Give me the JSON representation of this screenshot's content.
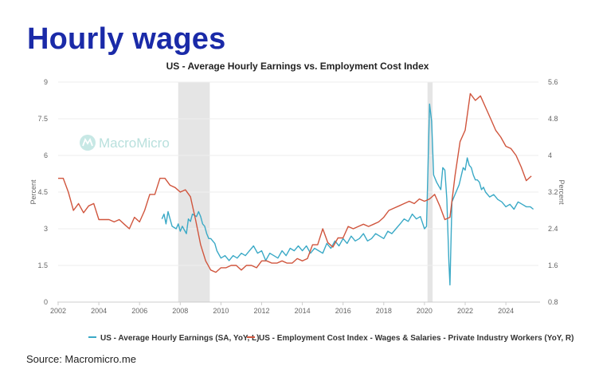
{
  "slide": {
    "title": "Hourly wages",
    "source": "Source: Macromicro.me"
  },
  "watermark": {
    "text": "MacroMicro",
    "icon": "macromicro-logo-icon"
  },
  "colors": {
    "title": "#1a2aa8",
    "series_ahe": "#3aa9c6",
    "series_eci": "#d0553d",
    "recession_shade": "#e5e5e5",
    "gridline": "#eeeeee"
  },
  "chart_data": {
    "type": "line",
    "title": "US - Average Hourly Earnings vs. Employment Cost Index",
    "xlim": [
      2002,
      2025.6
    ],
    "x_ticks": [
      "2002",
      "2004",
      "2006",
      "2008",
      "2010",
      "2012",
      "2014",
      "2016",
      "2018",
      "2020",
      "2022",
      "2024"
    ],
    "y_left": {
      "label": "Percent",
      "lim": [
        0,
        9
      ],
      "ticks": [
        "0",
        "1.5",
        "3",
        "4.5",
        "6",
        "7.5",
        "9"
      ]
    },
    "y_right": {
      "label": "Percent",
      "lim": [
        0.8,
        5.6
      ],
      "ticks": [
        "0.8",
        "1.6",
        "2.4",
        "3.2",
        "4",
        "4.8",
        "5.6"
      ]
    },
    "grid": "horizontal",
    "legend_position": "bottom",
    "recessions": [
      [
        2007.9,
        2009.45
      ],
      [
        2020.15,
        2020.4
      ]
    ],
    "series": [
      {
        "name": "US - Average Hourly Earnings (SA, YoY, L)",
        "axis": "left",
        "color": "#3aa9c6",
        "x": [
          2007.1,
          2007.2,
          2007.3,
          2007.4,
          2007.5,
          2007.6,
          2007.8,
          2007.9,
          2008.0,
          2008.1,
          2008.3,
          2008.4,
          2008.5,
          2008.6,
          2008.8,
          2008.9,
          2009.0,
          2009.1,
          2009.2,
          2009.3,
          2009.4,
          2009.5,
          2009.7,
          2009.8,
          2010.0,
          2010.2,
          2010.4,
          2010.6,
          2010.8,
          2011.0,
          2011.2,
          2011.4,
          2011.6,
          2011.8,
          2012.0,
          2012.2,
          2012.4,
          2012.6,
          2012.8,
          2013.0,
          2013.2,
          2013.4,
          2013.6,
          2013.8,
          2014.0,
          2014.2,
          2014.4,
          2014.6,
          2014.8,
          2015.0,
          2015.2,
          2015.4,
          2015.6,
          2015.8,
          2016.0,
          2016.2,
          2016.4,
          2016.6,
          2016.8,
          2017.0,
          2017.2,
          2017.4,
          2017.6,
          2017.8,
          2018.0,
          2018.2,
          2018.4,
          2018.6,
          2018.8,
          2019.0,
          2019.2,
          2019.4,
          2019.6,
          2019.8,
          2020.0,
          2020.1,
          2020.25,
          2020.35,
          2020.45,
          2020.6,
          2020.8,
          2020.9,
          2021.0,
          2021.1,
          2021.2,
          2021.25,
          2021.35,
          2021.5,
          2021.7,
          2021.9,
          2022.0,
          2022.1,
          2022.2,
          2022.3,
          2022.4,
          2022.5,
          2022.6,
          2022.7,
          2022.8,
          2022.9,
          2023.0,
          2023.2,
          2023.4,
          2023.6,
          2023.8,
          2024.0,
          2024.2,
          2024.4,
          2024.6,
          2024.8,
          2025.0,
          2025.2,
          2025.35
        ],
        "y": [
          3.4,
          3.6,
          3.2,
          3.7,
          3.4,
          3.1,
          3.0,
          3.2,
          2.9,
          3.1,
          2.8,
          3.4,
          3.3,
          3.6,
          3.5,
          3.7,
          3.5,
          3.2,
          3.1,
          2.8,
          2.6,
          2.6,
          2.4,
          2.1,
          1.8,
          1.9,
          1.7,
          1.9,
          1.8,
          2.0,
          1.9,
          2.1,
          2.3,
          2.0,
          2.1,
          1.7,
          2.0,
          1.9,
          1.8,
          2.1,
          1.9,
          2.2,
          2.1,
          2.3,
          2.1,
          2.3,
          2.0,
          2.2,
          2.1,
          2.0,
          2.4,
          2.2,
          2.5,
          2.3,
          2.6,
          2.4,
          2.7,
          2.5,
          2.6,
          2.8,
          2.5,
          2.6,
          2.8,
          2.7,
          2.6,
          2.9,
          2.8,
          3.0,
          3.2,
          3.4,
          3.3,
          3.6,
          3.4,
          3.5,
          3.0,
          3.1,
          8.1,
          7.4,
          5.2,
          4.9,
          4.6,
          5.5,
          5.4,
          4.2,
          1.6,
          0.7,
          4.1,
          4.4,
          4.8,
          5.5,
          5.4,
          5.9,
          5.6,
          5.5,
          5.2,
          5.0,
          5.0,
          4.9,
          4.6,
          4.7,
          4.5,
          4.3,
          4.4,
          4.2,
          4.1,
          3.9,
          4.0,
          3.8,
          4.1,
          4.0,
          3.9,
          3.9,
          3.8
        ]
      },
      {
        "name": "US - Employment Cost Index - Wages & Salaries - Private Industry Workers (YoY, R)",
        "axis": "right",
        "color": "#d0553d",
        "x": [
          2002.0,
          2002.25,
          2002.5,
          2002.75,
          2003.0,
          2003.25,
          2003.5,
          2003.75,
          2004.0,
          2004.25,
          2004.5,
          2004.75,
          2005.0,
          2005.25,
          2005.5,
          2005.75,
          2006.0,
          2006.25,
          2006.5,
          2006.75,
          2007.0,
          2007.25,
          2007.5,
          2007.75,
          2008.0,
          2008.25,
          2008.5,
          2008.75,
          2009.0,
          2009.25,
          2009.5,
          2009.75,
          2010.0,
          2010.25,
          2010.5,
          2010.75,
          2011.0,
          2011.25,
          2011.5,
          2011.75,
          2012.0,
          2012.25,
          2012.5,
          2012.75,
          2013.0,
          2013.25,
          2013.5,
          2013.75,
          2014.0,
          2014.25,
          2014.5,
          2014.75,
          2015.0,
          2015.25,
          2015.5,
          2015.75,
          2016.0,
          2016.25,
          2016.5,
          2016.75,
          2017.0,
          2017.25,
          2017.5,
          2017.75,
          2018.0,
          2018.25,
          2018.5,
          2018.75,
          2019.0,
          2019.25,
          2019.5,
          2019.75,
          2020.0,
          2020.25,
          2020.5,
          2020.75,
          2021.0,
          2021.25,
          2021.5,
          2021.75,
          2022.0,
          2022.25,
          2022.5,
          2022.75,
          2023.0,
          2023.25,
          2023.5,
          2023.75,
          2024.0,
          2024.25,
          2024.5,
          2024.75,
          2025.0,
          2025.25
        ],
        "y": [
          3.5,
          3.5,
          3.2,
          2.8,
          2.95,
          2.75,
          2.9,
          2.95,
          2.6,
          2.6,
          2.6,
          2.55,
          2.6,
          2.5,
          2.4,
          2.65,
          2.55,
          2.8,
          3.15,
          3.15,
          3.5,
          3.5,
          3.35,
          3.3,
          3.2,
          3.25,
          3.1,
          2.6,
          2.05,
          1.7,
          1.5,
          1.45,
          1.55,
          1.55,
          1.6,
          1.6,
          1.5,
          1.6,
          1.6,
          1.55,
          1.7,
          1.7,
          1.65,
          1.65,
          1.7,
          1.65,
          1.65,
          1.75,
          1.7,
          1.75,
          2.05,
          2.05,
          2.4,
          2.1,
          2.0,
          2.2,
          2.2,
          2.45,
          2.4,
          2.45,
          2.5,
          2.45,
          2.5,
          2.55,
          2.65,
          2.8,
          2.85,
          2.9,
          2.95,
          3.0,
          2.95,
          3.05,
          3.0,
          3.05,
          3.15,
          2.9,
          2.6,
          2.65,
          3.55,
          4.3,
          4.55,
          5.35,
          5.2,
          5.3,
          5.05,
          4.8,
          4.55,
          4.4,
          4.2,
          4.15,
          4.0,
          3.75,
          3.45,
          3.55
        ]
      }
    ]
  }
}
